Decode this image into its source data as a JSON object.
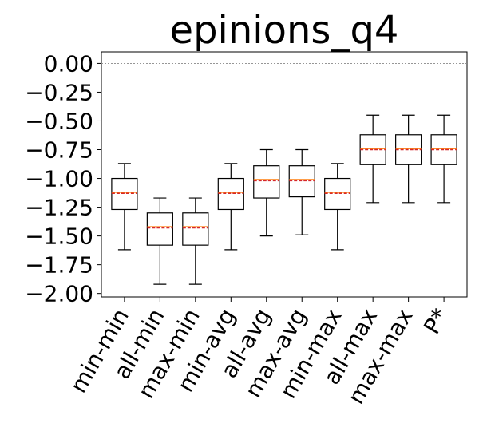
{
  "chart_data": {
    "type": "box",
    "title": "epinions_q4",
    "xlabel": "",
    "ylabel": "",
    "categories": [
      "min-min",
      "all-min",
      "max-min",
      "min-avg",
      "all-avg",
      "max-avg",
      "min-max",
      "all-max",
      "max-max",
      "P*"
    ],
    "ylim": [
      -2.03,
      0.1
    ],
    "yticks": [
      "0.00",
      "−0.25",
      "−0.50",
      "−0.75",
      "−1.00",
      "−1.25",
      "−1.50",
      "−1.75",
      "−2.00"
    ],
    "ytick_values": [
      0.0,
      -0.25,
      -0.5,
      -0.75,
      -1.0,
      -1.25,
      -1.5,
      -1.75,
      -2.0
    ],
    "reference_line": 0.0,
    "boxes": [
      {
        "whisker_high": -0.87,
        "q3": -1.0,
        "median": -1.12,
        "mean": -1.13,
        "q1": -1.27,
        "whisker_low": -1.62
      },
      {
        "whisker_high": -1.17,
        "q3": -1.3,
        "median": -1.42,
        "mean": -1.43,
        "q1": -1.58,
        "whisker_low": -1.92
      },
      {
        "whisker_high": -1.17,
        "q3": -1.3,
        "median": -1.42,
        "mean": -1.43,
        "q1": -1.58,
        "whisker_low": -1.92
      },
      {
        "whisker_high": -0.87,
        "q3": -1.0,
        "median": -1.12,
        "mean": -1.13,
        "q1": -1.27,
        "whisker_low": -1.62
      },
      {
        "whisker_high": -0.75,
        "q3": -0.89,
        "median": -1.01,
        "mean": -1.02,
        "q1": -1.17,
        "whisker_low": -1.5
      },
      {
        "whisker_high": -0.75,
        "q3": -0.89,
        "median": -1.01,
        "mean": -1.02,
        "q1": -1.16,
        "whisker_low": -1.49
      },
      {
        "whisker_high": -0.87,
        "q3": -1.0,
        "median": -1.12,
        "mean": -1.13,
        "q1": -1.27,
        "whisker_low": -1.62
      },
      {
        "whisker_high": -0.45,
        "q3": -0.62,
        "median": -0.74,
        "mean": -0.75,
        "q1": -0.88,
        "whisker_low": -1.21
      },
      {
        "whisker_high": -0.45,
        "q3": -0.62,
        "median": -0.74,
        "mean": -0.75,
        "q1": -0.88,
        "whisker_low": -1.21
      },
      {
        "whisker_high": -0.45,
        "q3": -0.62,
        "median": -0.74,
        "mean": -0.75,
        "q1": -0.88,
        "whisker_low": -1.21
      }
    ],
    "colors": {
      "box": "#000000",
      "median": "#ff7f0e",
      "mean": "#d62728",
      "reference": "#888888"
    },
    "grid": false,
    "legend": "none"
  }
}
